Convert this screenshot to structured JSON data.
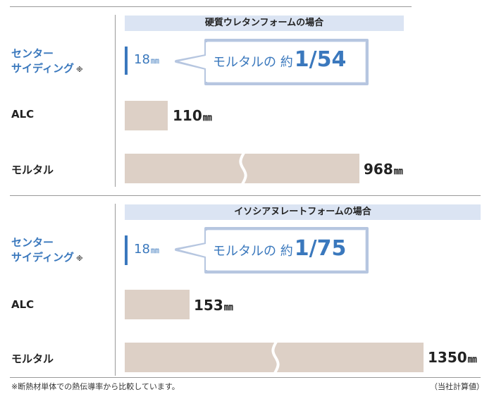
{
  "panels": [
    {
      "title": "硬質ウレタンフォームの場合",
      "rows": [
        {
          "label_lines": [
            "センター",
            "サイディング"
          ],
          "note": "※",
          "value": "18",
          "unit": "㎜"
        },
        {
          "label": "ALC",
          "value": "110",
          "unit": "㎜"
        },
        {
          "label": "モルタル",
          "value": "968",
          "unit": "㎜"
        }
      ],
      "callout": {
        "prefix": "モルタルの 約",
        "ratio": "1/54"
      }
    },
    {
      "title": "イソシアヌレートフォームの場合",
      "rows": [
        {
          "label_lines": [
            "センター",
            "サイディング"
          ],
          "note": "※",
          "value": "18",
          "unit": "㎜"
        },
        {
          "label": "ALC",
          "value": "153",
          "unit": "㎜"
        },
        {
          "label": "モルタル",
          "value": "1350",
          "unit": "㎜"
        }
      ],
      "callout": {
        "prefix": "モルタルの 約",
        "ratio": "1/75"
      }
    }
  ],
  "footnote": "※断熱材単体での熱伝導率から比較しています。",
  "source": "（当社計算値）",
  "colors": {
    "accent": "#3a78bd",
    "bar": "#ddd0c6",
    "title_bg": "#dbe4f3",
    "callout_fill": "#e6ecf6"
  },
  "chart_data": [
    {
      "type": "bar",
      "orientation": "horizontal",
      "title": "硬質ウレタンフォームの場合",
      "categories": [
        "センター サイディング",
        "ALC",
        "モルタル"
      ],
      "values": [
        18,
        110,
        968
      ],
      "unit": "㎜",
      "axis_break_on": "モルタル",
      "annotation": "モルタルの 約1/54"
    },
    {
      "type": "bar",
      "orientation": "horizontal",
      "title": "イソシアヌレートフォームの場合",
      "categories": [
        "センター サイディング",
        "ALC",
        "モルタル"
      ],
      "values": [
        18,
        153,
        1350
      ],
      "unit": "㎜",
      "axis_break_on": "モルタル",
      "annotation": "モルタルの 約1/75"
    }
  ]
}
